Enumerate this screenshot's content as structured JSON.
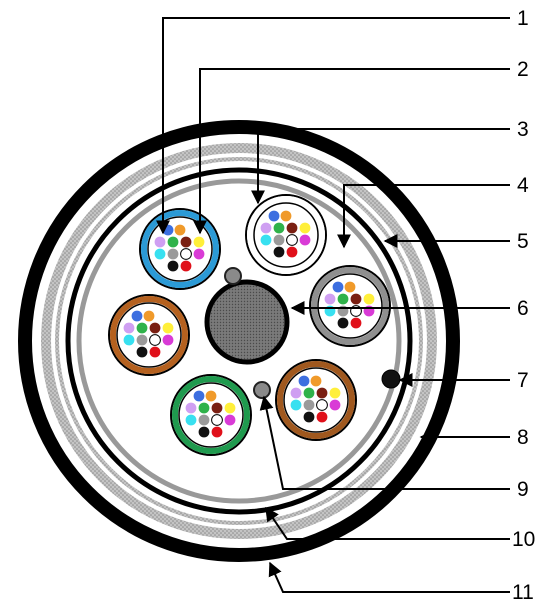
{
  "colors": {
    "background": "#ffffff",
    "line": "#000000",
    "outer_sheath": "#000000",
    "hatch_band": "#a8a8a8",
    "inner_sheath": "#000000",
    "wrap_tape": "#999999",
    "central_member": "#6b6b6b",
    "ripcord": "#111111",
    "filler": "#8a8a8a"
  },
  "fiber_colors": [
    "#3d6fe0",
    "#f09a2a",
    "#2fb24a",
    "#7a1f12",
    "#ffffff",
    "#9a9a9a",
    "#ffef3a",
    "#d93bd6",
    "#38e0f0",
    "#cf9ff2",
    "#111111",
    "#e0101a"
  ],
  "tubes": [
    {
      "id": "tube-blue",
      "ring_color": "#2b9ad6"
    },
    {
      "id": "tube-white",
      "ring_color": "#ffffff"
    },
    {
      "id": "tube-grey",
      "ring_color": "#8f8f8f"
    },
    {
      "id": "tube-brown-right",
      "ring_color": "#a0581e"
    },
    {
      "id": "tube-green",
      "ring_color": "#1f9a4e"
    },
    {
      "id": "tube-brown-left",
      "ring_color": "#b5611f"
    }
  ],
  "callouts": [
    "1",
    "2",
    "3",
    "4",
    "5",
    "6",
    "7",
    "8",
    "9",
    "10",
    "11"
  ]
}
